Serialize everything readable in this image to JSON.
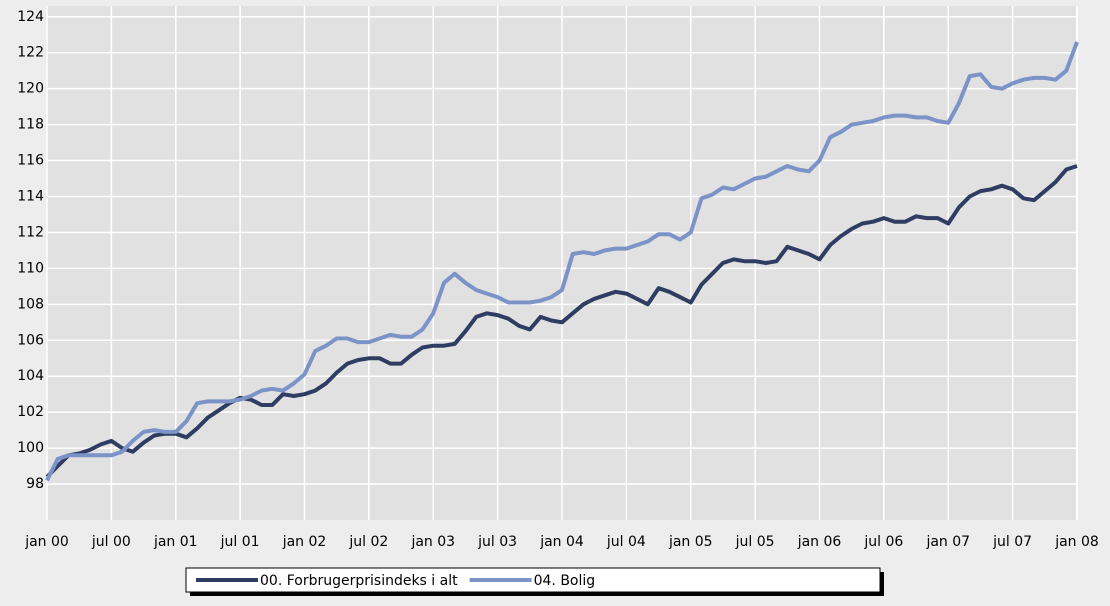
{
  "chart_data": {
    "type": "line",
    "categories": [
      "jan 00",
      null,
      null,
      null,
      null,
      null,
      "jul 00",
      null,
      null,
      null,
      null,
      null,
      "jan 01",
      null,
      null,
      null,
      null,
      null,
      "jul 01",
      null,
      null,
      null,
      null,
      null,
      "jan 02",
      null,
      null,
      null,
      null,
      null,
      "jul 02",
      null,
      null,
      null,
      null,
      null,
      "jan 03",
      null,
      null,
      null,
      null,
      null,
      "jul 03",
      null,
      null,
      null,
      null,
      null,
      "jan 04",
      null,
      null,
      null,
      null,
      null,
      "jul 04",
      null,
      null,
      null,
      null,
      null,
      "jan 05",
      null,
      null,
      null,
      null,
      null,
      "jul 05",
      null,
      null,
      null,
      null,
      null,
      "jan 06",
      null,
      null,
      null,
      null,
      null,
      "jul 06",
      null,
      null,
      null,
      null,
      null,
      "jan 07",
      null,
      null,
      null,
      null,
      null,
      "jul 07",
      null,
      null,
      null,
      null,
      null,
      "jan 08"
    ],
    "series": [
      {
        "name": "00. Forbrugerprisindeks i alt",
        "color": "#2f3d63",
        "values": [
          98.4,
          99.0,
          99.6,
          99.7,
          99.9,
          100.2,
          100.4,
          100.0,
          99.8,
          100.3,
          100.7,
          100.8,
          100.8,
          100.6,
          101.1,
          101.7,
          102.1,
          102.5,
          102.8,
          102.7,
          102.4,
          102.4,
          103.0,
          102.9,
          103.0,
          103.2,
          103.6,
          104.2,
          104.7,
          104.9,
          105.0,
          105.0,
          104.7,
          104.7,
          105.2,
          105.6,
          105.7,
          105.7,
          105.8,
          106.5,
          107.3,
          107.5,
          107.4,
          107.2,
          106.8,
          106.6,
          107.3,
          107.1,
          107.0,
          107.5,
          108.0,
          108.3,
          108.5,
          108.7,
          108.6,
          108.3,
          108.0,
          108.9,
          108.7,
          108.4,
          108.1,
          109.1,
          109.7,
          110.3,
          110.5,
          110.4,
          110.4,
          110.3,
          110.4,
          111.2,
          111.0,
          110.8,
          110.5,
          111.3,
          111.8,
          112.2,
          112.5,
          112.6,
          112.8,
          112.6,
          112.6,
          112.9,
          112.8,
          112.8,
          112.5,
          113.4,
          114.0,
          114.3,
          114.4,
          114.6,
          114.4,
          113.9,
          113.8,
          114.3,
          114.8,
          115.5,
          115.7
        ]
      },
      {
        "name": "04. Bolig",
        "color": "#7b93c7",
        "values": [
          98.2,
          99.4,
          99.6,
          99.6,
          99.6,
          99.6,
          99.6,
          99.8,
          100.4,
          100.9,
          101.0,
          100.9,
          100.9,
          101.5,
          102.5,
          102.6,
          102.6,
          102.6,
          102.7,
          102.9,
          103.2,
          103.3,
          103.2,
          103.6,
          104.1,
          105.4,
          105.7,
          106.1,
          106.1,
          105.9,
          105.9,
          106.1,
          106.3,
          106.2,
          106.2,
          106.6,
          107.5,
          109.2,
          109.7,
          109.2,
          108.8,
          108.6,
          108.4,
          108.1,
          108.1,
          108.1,
          108.2,
          108.4,
          108.8,
          110.8,
          110.9,
          110.8,
          111.0,
          111.1,
          111.1,
          111.3,
          111.5,
          111.9,
          111.9,
          111.6,
          112.0,
          113.9,
          114.1,
          114.5,
          114.4,
          114.7,
          115.0,
          115.1,
          115.4,
          115.7,
          115.5,
          115.4,
          116.0,
          117.3,
          117.6,
          118.0,
          118.1,
          118.2,
          118.4,
          118.5,
          118.5,
          118.4,
          118.4,
          118.2,
          118.1,
          119.2,
          120.7,
          120.8,
          120.1,
          120.0,
          120.3,
          120.5,
          120.6,
          120.6,
          120.5,
          121.0,
          122.6
        ]
      }
    ],
    "ylim": [
      96,
      124.6
    ],
    "yticks": [
      98,
      100,
      102,
      104,
      106,
      108,
      110,
      112,
      114,
      116,
      118,
      120,
      122,
      124
    ],
    "grid": true,
    "legend": "bottom"
  }
}
